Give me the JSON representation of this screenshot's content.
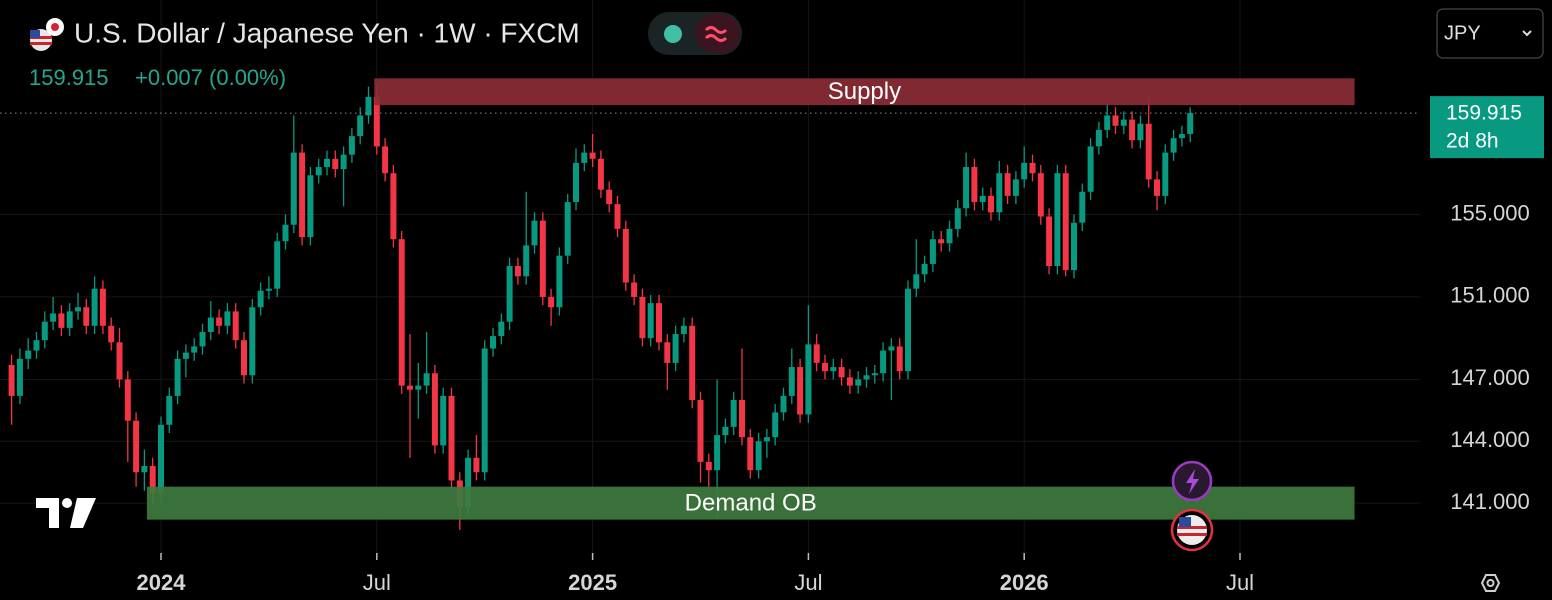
{
  "chart_data": {
    "type": "candlestick",
    "title": "U.S. Dollar / Japanese Yen · 1W · FXCM",
    "change": "+0.007 (0.00%)",
    "currency": "JPY",
    "countdown": "2d 8h",
    "up_color": "#089981",
    "down_color": "#f23645",
    "ylim": [
      138,
      165.4
    ],
    "yticks": [
      {
        "value": 141,
        "label": "141.000"
      },
      {
        "value": 144,
        "label": "144.000"
      },
      {
        "value": 147,
        "label": "147.000"
      },
      {
        "value": 151,
        "label": "151.000"
      },
      {
        "value": 155,
        "label": "155.000"
      }
    ],
    "grid": true,
    "categories": [
      null,
      null,
      null,
      null,
      null,
      null,
      null,
      null,
      null,
      null,
      null,
      null,
      null,
      null,
      null,
      null,
      null,
      null,
      "2024",
      null,
      null,
      null,
      null,
      null,
      null,
      null,
      null,
      null,
      null,
      null,
      null,
      null,
      null,
      null,
      null,
      null,
      null,
      null,
      null,
      null,
      null,
      null,
      null,
      null,
      "Jul",
      null,
      null,
      null,
      null,
      null,
      null,
      null,
      null,
      null,
      null,
      null,
      null,
      null,
      null,
      null,
      null,
      null,
      null,
      null,
      null,
      null,
      null,
      null,
      null,
      null,
      "2025",
      null,
      null,
      null,
      null,
      null,
      null,
      null,
      null,
      null,
      null,
      null,
      null,
      null,
      null,
      null,
      null,
      null,
      null,
      null,
      null,
      null,
      null,
      null,
      null,
      null,
      "Jul",
      null,
      null,
      null,
      null,
      null,
      null,
      null,
      null,
      null,
      null,
      null,
      null,
      null,
      null,
      null,
      null,
      null,
      null,
      null,
      null,
      null,
      null,
      null,
      null,
      null,
      "2026",
      null,
      null,
      null,
      null,
      null,
      null,
      null,
      null,
      null,
      null,
      null,
      null,
      null,
      null,
      null,
      null,
      null,
      null,
      null,
      null,
      null,
      null,
      null,
      null,
      null,
      "Jul"
    ],
    "ohlc": [
      [
        147.7,
        148.2,
        144.8,
        146.2
      ],
      [
        146.2,
        148.5,
        145.8,
        148.0
      ],
      [
        148.0,
        149.0,
        147.5,
        148.4
      ],
      [
        148.4,
        149.3,
        148.0,
        148.9
      ],
      [
        148.9,
        150.3,
        148.5,
        149.8
      ],
      [
        149.8,
        151.0,
        149.4,
        150.2
      ],
      [
        150.2,
        150.6,
        149.1,
        149.5
      ],
      [
        149.5,
        150.7,
        149.1,
        150.3
      ],
      [
        150.3,
        151.2,
        149.9,
        150.5
      ],
      [
        150.5,
        150.9,
        149.2,
        149.6
      ],
      [
        149.6,
        152.0,
        149.2,
        151.4
      ],
      [
        151.4,
        151.8,
        149.2,
        149.6
      ],
      [
        149.6,
        150.0,
        148.4,
        148.8
      ],
      [
        148.8,
        149.5,
        146.6,
        147.0
      ],
      [
        147.0,
        147.4,
        143.0,
        145.0
      ],
      [
        145.0,
        145.4,
        141.8,
        142.5
      ],
      [
        142.5,
        143.6,
        141.6,
        142.8
      ],
      [
        142.8,
        143.2,
        141.0,
        141.5
      ],
      [
        141.5,
        145.2,
        141.0,
        144.8
      ],
      [
        144.8,
        146.6,
        144.4,
        146.2
      ],
      [
        146.2,
        148.4,
        145.8,
        148.0
      ],
      [
        148.0,
        148.7,
        147.1,
        148.3
      ],
      [
        148.3,
        149.0,
        147.9,
        148.6
      ],
      [
        148.6,
        149.7,
        148.2,
        149.3
      ],
      [
        149.3,
        150.8,
        148.9,
        150.0
      ],
      [
        150.0,
        150.4,
        149.2,
        149.6
      ],
      [
        149.6,
        150.7,
        149.2,
        150.3
      ],
      [
        150.3,
        150.7,
        148.5,
        148.9
      ],
      [
        148.9,
        149.3,
        146.8,
        147.2
      ],
      [
        147.2,
        150.9,
        146.8,
        150.5
      ],
      [
        150.5,
        151.7,
        150.1,
        151.3
      ],
      [
        151.3,
        152.0,
        150.9,
        151.4
      ],
      [
        151.4,
        154.1,
        151.0,
        153.7
      ],
      [
        153.7,
        155.0,
        153.3,
        154.5
      ],
      [
        154.5,
        159.8,
        154.1,
        158.0
      ],
      [
        158.0,
        158.4,
        153.5,
        153.9
      ],
      [
        153.9,
        157.3,
        153.5,
        156.9
      ],
      [
        156.9,
        157.7,
        156.5,
        157.3
      ],
      [
        157.3,
        158.1,
        156.9,
        157.7
      ],
      [
        157.7,
        158.1,
        156.8,
        157.2
      ],
      [
        157.2,
        158.3,
        155.4,
        157.9
      ],
      [
        157.9,
        159.2,
        157.5,
        158.8
      ],
      [
        158.8,
        160.2,
        158.4,
        159.8
      ],
      [
        159.8,
        161.2,
        159.4,
        160.7
      ],
      [
        160.7,
        161.3,
        157.9,
        158.3
      ],
      [
        158.3,
        158.7,
        156.6,
        157.0
      ],
      [
        157.0,
        157.4,
        153.4,
        153.8
      ],
      [
        153.8,
        154.2,
        146.3,
        146.7
      ],
      [
        146.7,
        149.2,
        143.2,
        146.5
      ],
      [
        146.5,
        147.8,
        145.1,
        146.7
      ],
      [
        146.7,
        149.3,
        146.3,
        147.3
      ],
      [
        147.3,
        147.7,
        143.4,
        143.8
      ],
      [
        143.8,
        146.6,
        143.4,
        146.2
      ],
      [
        146.2,
        146.6,
        141.7,
        142.1
      ],
      [
        142.1,
        142.5,
        139.7,
        140.8
      ],
      [
        140.8,
        143.6,
        140.4,
        143.2
      ],
      [
        143.2,
        144.3,
        142.1,
        142.5
      ],
      [
        142.5,
        148.9,
        142.1,
        148.5
      ],
      [
        148.5,
        149.5,
        148.1,
        149.1
      ],
      [
        149.1,
        150.2,
        148.7,
        149.8
      ],
      [
        149.8,
        152.9,
        149.4,
        152.5
      ],
      [
        152.5,
        152.9,
        151.6,
        152.0
      ],
      [
        152.0,
        156.1,
        151.6,
        153.5
      ],
      [
        153.5,
        155.1,
        153.1,
        154.7
      ],
      [
        154.7,
        155.1,
        150.6,
        151.0
      ],
      [
        151.0,
        151.4,
        149.6,
        150.5
      ],
      [
        150.5,
        153.4,
        150.1,
        153.0
      ],
      [
        153.0,
        156.0,
        152.6,
        155.6
      ],
      [
        155.6,
        158.2,
        155.2,
        157.5
      ],
      [
        157.5,
        158.4,
        157.1,
        158.0
      ],
      [
        158.0,
        158.9,
        157.3,
        157.7
      ],
      [
        157.7,
        158.1,
        155.8,
        156.2
      ],
      [
        156.2,
        156.6,
        155.1,
        155.5
      ],
      [
        155.5,
        155.9,
        153.9,
        154.3
      ],
      [
        154.3,
        154.7,
        151.3,
        151.7
      ],
      [
        151.7,
        152.1,
        150.6,
        151.0
      ],
      [
        151.0,
        151.4,
        148.6,
        149.0
      ],
      [
        149.0,
        151.1,
        148.6,
        150.7
      ],
      [
        150.7,
        151.1,
        148.4,
        148.8
      ],
      [
        148.8,
        149.2,
        146.5,
        147.8
      ],
      [
        147.8,
        149.6,
        147.4,
        149.2
      ],
      [
        149.2,
        150.0,
        148.8,
        149.6
      ],
      [
        149.6,
        150.0,
        145.6,
        146.0
      ],
      [
        146.0,
        146.4,
        142.0,
        143.0
      ],
      [
        143.0,
        143.4,
        141.8,
        142.6
      ],
      [
        142.6,
        147.0,
        140.3,
        144.3
      ],
      [
        144.3,
        145.1,
        143.9,
        144.7
      ],
      [
        144.7,
        146.4,
        144.3,
        146.0
      ],
      [
        146.0,
        148.5,
        143.8,
        144.2
      ],
      [
        144.2,
        144.6,
        142.2,
        142.6
      ],
      [
        142.6,
        144.4,
        142.2,
        144.0
      ],
      [
        144.0,
        144.6,
        143.2,
        144.2
      ],
      [
        144.2,
        145.8,
        143.8,
        145.4
      ],
      [
        145.4,
        146.6,
        145.0,
        146.2
      ],
      [
        146.2,
        148.5,
        145.8,
        147.6
      ],
      [
        147.6,
        148.0,
        144.9,
        145.3
      ],
      [
        145.3,
        150.6,
        144.9,
        148.7
      ],
      [
        148.7,
        149.2,
        147.4,
        147.8
      ],
      [
        147.8,
        148.2,
        147.0,
        147.4
      ],
      [
        147.4,
        148.0,
        147.0,
        147.6
      ],
      [
        147.6,
        148.0,
        146.7,
        147.1
      ],
      [
        147.1,
        147.5,
        146.3,
        146.7
      ],
      [
        146.7,
        147.4,
        146.3,
        147.0
      ],
      [
        147.0,
        147.6,
        146.6,
        147.2
      ],
      [
        147.2,
        147.7,
        146.8,
        147.3
      ],
      [
        147.3,
        148.8,
        146.9,
        148.4
      ],
      [
        148.4,
        149.0,
        146.0,
        148.6
      ],
      [
        148.6,
        149.0,
        147.0,
        147.4
      ],
      [
        147.4,
        151.8,
        147.0,
        151.4
      ],
      [
        151.4,
        153.8,
        151.0,
        152.1
      ],
      [
        152.1,
        153.0,
        151.7,
        152.6
      ],
      [
        152.6,
        154.2,
        152.2,
        153.8
      ],
      [
        153.8,
        154.2,
        153.2,
        153.6
      ],
      [
        153.6,
        154.7,
        153.2,
        154.3
      ],
      [
        154.3,
        155.7,
        153.9,
        155.3
      ],
      [
        155.3,
        158.0,
        154.9,
        157.3
      ],
      [
        157.3,
        157.7,
        155.2,
        155.6
      ],
      [
        155.6,
        156.3,
        155.2,
        155.9
      ],
      [
        155.9,
        156.3,
        154.7,
        155.1
      ],
      [
        155.1,
        157.6,
        154.7,
        157.0
      ],
      [
        157.0,
        157.4,
        155.5,
        155.9
      ],
      [
        155.9,
        157.1,
        155.5,
        156.7
      ],
      [
        156.7,
        158.3,
        156.3,
        157.5
      ],
      [
        157.5,
        157.9,
        156.6,
        157.0
      ],
      [
        157.0,
        157.4,
        154.5,
        154.9
      ],
      [
        154.9,
        155.3,
        152.1,
        152.5
      ],
      [
        152.5,
        157.4,
        152.1,
        157.0
      ],
      [
        157.0,
        157.4,
        152.0,
        152.3
      ],
      [
        152.3,
        155.0,
        151.9,
        154.6
      ],
      [
        154.6,
        156.5,
        154.2,
        156.1
      ],
      [
        156.1,
        158.7,
        155.7,
        158.3
      ],
      [
        158.3,
        159.5,
        157.9,
        159.1
      ],
      [
        159.1,
        160.4,
        158.7,
        159.8
      ],
      [
        159.8,
        160.2,
        158.9,
        159.3
      ],
      [
        159.3,
        160.0,
        158.9,
        159.6
      ],
      [
        159.6,
        160.0,
        158.2,
        158.6
      ],
      [
        158.6,
        159.8,
        158.2,
        159.4
      ],
      [
        159.4,
        160.8,
        156.3,
        156.7
      ],
      [
        156.7,
        157.1,
        155.2,
        155.9
      ],
      [
        155.9,
        158.4,
        155.5,
        158.0
      ],
      [
        158.0,
        159.1,
        157.6,
        158.7
      ],
      [
        158.7,
        159.3,
        158.3,
        158.9
      ],
      [
        158.9,
        160.2,
        158.5,
        159.915
      ],
      null,
      null,
      null,
      null,
      null,
      null
    ],
    "zones": [
      {
        "label": "Supply",
        "top": 161.6,
        "bottom": 160.3,
        "start": 43.7,
        "end": 161.8,
        "color": "#8c2d36"
      },
      {
        "label": "Demand OB",
        "top": 141.8,
        "bottom": 140.2,
        "start": 16.3,
        "end": 161.8,
        "color": "#3f7a3f"
      }
    ]
  }
}
